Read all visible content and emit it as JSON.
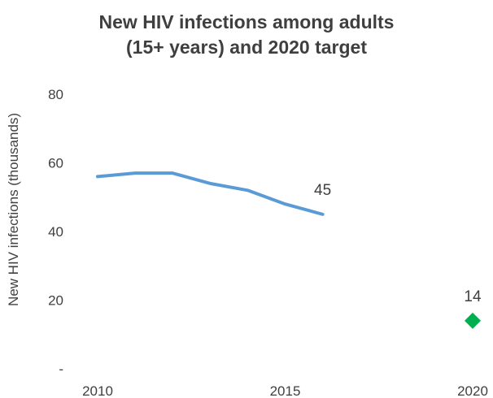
{
  "chart_data": {
    "type": "line",
    "title_line1": "New HIV infections among adults",
    "title_line2": "(15+ years) and 2020 target",
    "ylabel": "New HIV infections (thousands)",
    "xlabel": "",
    "ylim": [
      0,
      80
    ],
    "yticks": [
      {
        "value": 0,
        "label": "-"
      },
      {
        "value": 20,
        "label": "20"
      },
      {
        "value": 40,
        "label": "40"
      },
      {
        "value": 60,
        "label": "60"
      },
      {
        "value": 80,
        "label": "80"
      }
    ],
    "xlim": [
      2010,
      2020
    ],
    "xticks": [
      {
        "value": 2010,
        "label": "2010"
      },
      {
        "value": 2015,
        "label": "2015"
      },
      {
        "value": 2020,
        "label": "2020"
      }
    ],
    "grid": false,
    "series": [
      {
        "color": "#5b9bd5",
        "x": [
          2010,
          2011,
          2012,
          2013,
          2014,
          2015,
          2016
        ],
        "y": [
          56,
          57,
          57,
          54,
          52,
          48,
          45
        ]
      },
      {
        "color": "#00b050",
        "marker": "diamond",
        "x": [
          2020
        ],
        "y": [
          14
        ]
      }
    ],
    "annotations": [
      {
        "x": 2016,
        "y": 45,
        "text": "45"
      },
      {
        "x": 2020,
        "y": 14,
        "text": "14"
      }
    ]
  }
}
